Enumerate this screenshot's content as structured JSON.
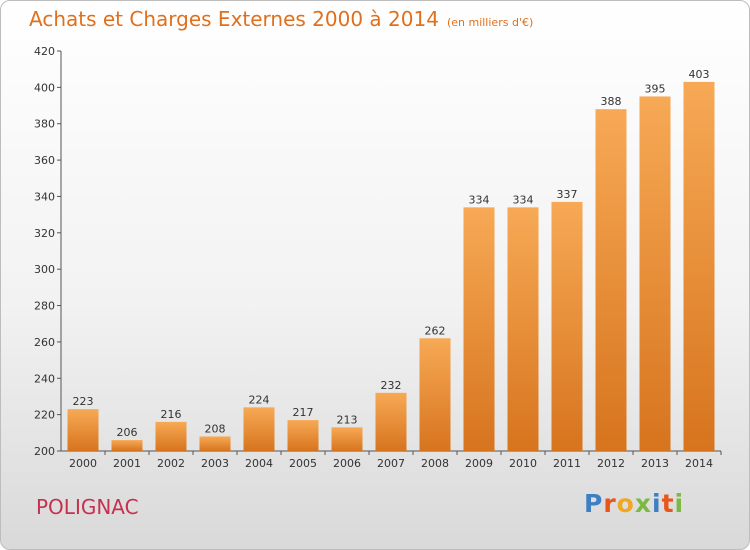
{
  "title": "Achats et Charges Externes 2000 à 2014",
  "subtitle": "(en milliers d'€)",
  "town": "POLIGNAC",
  "logo": {
    "text": "Proxiti",
    "letters": [
      "P",
      "r",
      "o",
      "x",
      "i",
      "t",
      "i"
    ],
    "colors": [
      "#3c7fc4",
      "#e8561c",
      "#f0a823",
      "#7cb942",
      "#3c7fc4",
      "#e8561c",
      "#7cb942"
    ]
  },
  "colors": {
    "title": "#e0701c",
    "town": "#c6314f",
    "bar_top": "#f7a955",
    "bar_bottom": "#d7741e"
  },
  "chart_data": {
    "type": "bar",
    "categories": [
      "2000",
      "2001",
      "2002",
      "2003",
      "2004",
      "2005",
      "2006",
      "2007",
      "2008",
      "2009",
      "2010",
      "2011",
      "2012",
      "2013",
      "2014"
    ],
    "values": [
      223,
      206,
      216,
      208,
      224,
      217,
      213,
      232,
      262,
      334,
      334,
      337,
      388,
      395,
      403
    ],
    "title": "Achats et Charges Externes 2000 à 2014",
    "ylim": [
      200,
      420
    ],
    "yticks": [
      200,
      220,
      240,
      260,
      280,
      300,
      320,
      340,
      360,
      380,
      400,
      420
    ],
    "grid": false,
    "data_labels": true
  }
}
